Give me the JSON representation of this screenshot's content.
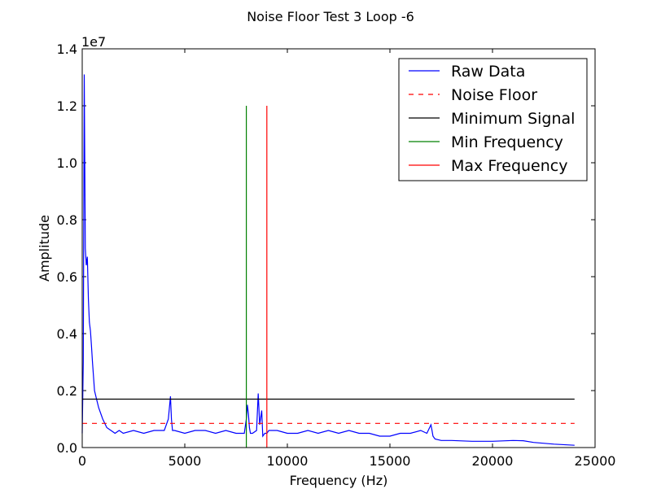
{
  "chart_data": {
    "type": "line",
    "title": "Noise Floor Test 3 Loop -6",
    "xlabel": "Frequency (Hz)",
    "ylabel": "Amplitude",
    "y_offset_text": "1e7",
    "xlim": [
      0,
      25000
    ],
    "ylim": [
      0,
      1.4
    ],
    "x_ticks": [
      0,
      5000,
      10000,
      15000,
      20000,
      25000
    ],
    "x_tick_labels": [
      "0",
      "5000",
      "10000",
      "15000",
      "20000",
      "25000"
    ],
    "y_ticks": [
      0,
      0.2,
      0.4,
      0.6,
      0.8,
      1.0,
      1.2,
      1.4
    ],
    "y_tick_labels": [
      "0.0",
      "0.2",
      "0.4",
      "0.6",
      "0.8",
      "1.0",
      "1.2",
      "1.4"
    ],
    "grid": false,
    "legend_position": "top-right",
    "series": [
      {
        "name": "Raw Data",
        "color": "#0000ff",
        "style": "solid",
        "x": [
          0,
          50,
          100,
          150,
          200,
          250,
          300,
          350,
          400,
          450,
          500,
          600,
          700,
          800,
          900,
          1000,
          1200,
          1400,
          1600,
          1800,
          2000,
          2500,
          3000,
          3500,
          4000,
          4200,
          4300,
          4350,
          4400,
          4500,
          5000,
          5500,
          6000,
          6500,
          7000,
          7500,
          7900,
          8000,
          8050,
          8100,
          8150,
          8200,
          8300,
          8500,
          8580,
          8650,
          8750,
          8800,
          8900,
          9000,
          9100,
          9500,
          10000,
          10500,
          11000,
          11500,
          12000,
          12500,
          13000,
          13500,
          14000,
          14500,
          15000,
          15500,
          16000,
          16500,
          16800,
          17000,
          17050,
          17100,
          17200,
          17500,
          18000,
          19000,
          20000,
          21000,
          21500,
          22000,
          23000,
          24000
        ],
        "y": [
          0.05,
          0.3,
          1.31,
          0.7,
          0.64,
          0.67,
          0.52,
          0.44,
          0.41,
          0.36,
          0.3,
          0.2,
          0.17,
          0.14,
          0.12,
          0.1,
          0.07,
          0.06,
          0.05,
          0.06,
          0.05,
          0.06,
          0.05,
          0.06,
          0.06,
          0.1,
          0.18,
          0.1,
          0.06,
          0.06,
          0.05,
          0.06,
          0.06,
          0.05,
          0.06,
          0.05,
          0.05,
          0.1,
          0.15,
          0.12,
          0.07,
          0.05,
          0.05,
          0.06,
          0.19,
          0.08,
          0.13,
          0.04,
          0.05,
          0.05,
          0.06,
          0.06,
          0.05,
          0.05,
          0.06,
          0.05,
          0.06,
          0.05,
          0.06,
          0.05,
          0.05,
          0.04,
          0.04,
          0.05,
          0.05,
          0.06,
          0.05,
          0.08,
          0.06,
          0.04,
          0.03,
          0.025,
          0.025,
          0.022,
          0.022,
          0.025,
          0.024,
          0.018,
          0.012,
          0.008
        ]
      },
      {
        "name": "Noise Floor",
        "color": "#ff0000",
        "style": "dashed",
        "x": [
          0,
          24000
        ],
        "y": [
          0.085,
          0.085
        ]
      },
      {
        "name": "Minimum Signal",
        "color": "#000000",
        "style": "solid",
        "x": [
          0,
          24000
        ],
        "y": [
          0.17,
          0.17
        ]
      },
      {
        "name": "Min Frequency",
        "color": "#008000",
        "style": "solid",
        "x": [
          8000,
          8000
        ],
        "y": [
          0,
          1.2
        ]
      },
      {
        "name": "Max Frequency",
        "color": "#ff0000",
        "style": "solid",
        "x": [
          9000,
          9000
        ],
        "y": [
          0,
          1.2
        ]
      }
    ]
  }
}
